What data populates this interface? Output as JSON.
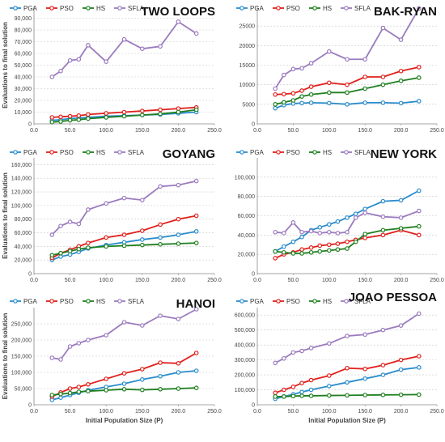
{
  "figure": {
    "legend": [
      "PGA",
      "PSO",
      "HS",
      "SFLA"
    ],
    "series_colors": {
      "PGA": "#2a8ccc",
      "PSO": "#e0201c",
      "HS": "#1f7f1f",
      "SFLA": "#9b7bbf"
    }
  },
  "chart_data": [
    {
      "type": "line",
      "title": "TWO LOOPS",
      "xlabel": "",
      "ylabel": "Evaluations to final solution",
      "xlim": [
        0,
        250
      ],
      "ylim": [
        0,
        100000
      ],
      "xticks": [
        0,
        50,
        100,
        150,
        200,
        250
      ],
      "xtick_labels": [
        "0.0",
        "50.0",
        "100.0",
        "150.0",
        "200.0",
        "250.0"
      ],
      "yticks": [
        0,
        10000,
        20000,
        30000,
        40000,
        50000,
        60000,
        70000,
        80000,
        90000
      ],
      "ytick_labels": [
        "0",
        "10,000",
        "20,000",
        "30,000",
        "40,000",
        "50,000",
        "60,000",
        "70,000",
        "80,000",
        "90,000"
      ],
      "x": [
        25,
        37,
        50,
        62,
        75,
        100,
        125,
        150,
        175,
        200,
        225
      ],
      "series": [
        {
          "name": "PGA",
          "values": [
            3000,
            3500,
            4500,
            5000,
            5500,
            6500,
            7000,
            7500,
            8000,
            9000,
            10000
          ]
        },
        {
          "name": "PSO",
          "values": [
            5500,
            6000,
            6500,
            7000,
            8000,
            9000,
            10000,
            11000,
            12000,
            13000,
            14000
          ]
        },
        {
          "name": "HS",
          "values": [
            1500,
            2000,
            3000,
            3500,
            4500,
            5500,
            6500,
            7500,
            8500,
            10000,
            12000
          ]
        },
        {
          "name": "SFLA",
          "values": [
            40000,
            45000,
            54000,
            55000,
            67000,
            53000,
            72000,
            64000,
            66000,
            87000,
            77000
          ]
        }
      ]
    },
    {
      "type": "line",
      "title": "BAK-RYAN",
      "xlabel": "",
      "ylabel": "",
      "xlim": [
        0,
        250
      ],
      "ylim": [
        0,
        30000
      ],
      "xticks": [
        0,
        50,
        100,
        150,
        200,
        250
      ],
      "xtick_labels": [
        "0.0",
        "50.0",
        "100.0",
        "150.0",
        "200.0",
        "250.0"
      ],
      "yticks": [
        0,
        5000,
        10000,
        15000,
        20000,
        25000
      ],
      "ytick_labels": [
        "0",
        "5000",
        "10000",
        "15000",
        "20000",
        "25000"
      ],
      "x": [
        25,
        37,
        50,
        62,
        75,
        100,
        125,
        150,
        175,
        200,
        225
      ],
      "series": [
        {
          "name": "PGA",
          "values": [
            4000,
            4800,
            5200,
            5300,
            5400,
            5300,
            5000,
            5400,
            5400,
            5300,
            5800
          ]
        },
        {
          "name": "PSO",
          "values": [
            7500,
            7600,
            7800,
            8500,
            9500,
            10500,
            10000,
            12000,
            12000,
            13500,
            14500
          ]
        },
        {
          "name": "HS",
          "values": [
            5000,
            5500,
            6000,
            7000,
            7500,
            8000,
            8000,
            9000,
            10000,
            11000,
            11800
          ]
        },
        {
          "name": "SFLA",
          "values": [
            9000,
            12500,
            14000,
            14200,
            15500,
            18500,
            16500,
            16500,
            24500,
            21500,
            29500
          ]
        }
      ]
    },
    {
      "type": "line",
      "title": "GOYANG",
      "xlabel": "",
      "ylabel": "Evaluations to final solution",
      "xlim": [
        0,
        250
      ],
      "ylim": [
        0,
        170000
      ],
      "xticks": [
        0,
        50,
        100,
        150,
        200,
        250
      ],
      "xtick_labels": [
        "0.0",
        "50.0",
        "100.0",
        "150.0",
        "200.0",
        "250.0"
      ],
      "yticks": [
        0,
        20000,
        40000,
        60000,
        80000,
        100000,
        120000,
        140000,
        160000
      ],
      "ytick_labels": [
        "0",
        "20,000",
        "40,000",
        "60,000",
        "80,000",
        "100,000",
        "120,000",
        "140,000",
        "160,000"
      ],
      "x": [
        25,
        37,
        50,
        62,
        75,
        100,
        125,
        150,
        175,
        200,
        225
      ],
      "series": [
        {
          "name": "PGA",
          "values": [
            20000,
            25000,
            28000,
            32000,
            37000,
            42000,
            46000,
            50000,
            53000,
            57000,
            62000
          ]
        },
        {
          "name": "PSO",
          "values": [
            23000,
            30000,
            35000,
            40000,
            45000,
            53000,
            57000,
            63000,
            72000,
            80000,
            85000
          ]
        },
        {
          "name": "HS",
          "values": [
            27000,
            30000,
            33000,
            36000,
            38000,
            40000,
            41000,
            42000,
            43000,
            44000,
            45000
          ]
        },
        {
          "name": "SFLA",
          "values": [
            57000,
            70000,
            76000,
            73000,
            94000,
            103000,
            111000,
            108000,
            128000,
            130000,
            136000
          ]
        }
      ]
    },
    {
      "type": "line",
      "title": "NEW YORK",
      "xlabel": "",
      "ylabel": "",
      "xlim": [
        0,
        250
      ],
      "ylim": [
        0,
        120000
      ],
      "xticks": [
        0,
        50,
        100,
        150,
        200,
        250
      ],
      "xtick_labels": [
        "0.0",
        "50.0",
        "100.0",
        "150.0",
        "200.0",
        "250.0"
      ],
      "yticks": [
        0,
        20000,
        40000,
        60000,
        80000,
        100000
      ],
      "ytick_labels": [
        "0",
        "20,000",
        "40,000",
        "60,000",
        "80,000",
        "100,000"
      ],
      "x": [
        25,
        37,
        50,
        62,
        75,
        87,
        100,
        112,
        125,
        137,
        150,
        175,
        200,
        225
      ],
      "series": [
        {
          "name": "PGA",
          "values": [
            23000,
            28000,
            33000,
            38000,
            45000,
            48000,
            51000,
            54000,
            58000,
            62000,
            67000,
            75000,
            76000,
            86000
          ]
        },
        {
          "name": "PSO",
          "values": [
            16000,
            20000,
            22000,
            25000,
            27000,
            29000,
            30000,
            31000,
            33000,
            35000,
            37000,
            40000,
            45000,
            40000
          ]
        },
        {
          "name": "HS",
          "values": [
            23000,
            22000,
            21000,
            21000,
            22000,
            23000,
            24000,
            25000,
            26000,
            33000,
            41000,
            45000,
            47000,
            49000
          ]
        },
        {
          "name": "SFLA",
          "values": [
            43000,
            42000,
            53000,
            43000,
            44000,
            42000,
            43000,
            42000,
            43000,
            58000,
            63000,
            59000,
            58000,
            65000
          ]
        }
      ]
    },
    {
      "type": "line",
      "title": "HANOI",
      "xlabel": "Initial  Population Size (P)",
      "ylabel": "Evaluations to final solution",
      "xlim": [
        0,
        250
      ],
      "ylim": [
        0,
        300000
      ],
      "xticks": [
        0,
        50,
        100,
        150,
        200,
        250
      ],
      "xtick_labels": [
        "0.0",
        "50.0",
        "100.0",
        "150.0",
        "200.0",
        "250.0"
      ],
      "yticks": [
        0,
        50000,
        100000,
        150000,
        200000,
        250000
      ],
      "ytick_labels": [
        "0",
        "50,000",
        "100,000",
        "150,000",
        "200,000",
        "250,000"
      ],
      "x": [
        25,
        37,
        50,
        62,
        75,
        100,
        125,
        150,
        175,
        200,
        225
      ],
      "series": [
        {
          "name": "PGA",
          "values": [
            15000,
            22000,
            30000,
            37000,
            45000,
            55000,
            65000,
            78000,
            88000,
            100000,
            105000
          ]
        },
        {
          "name": "PSO",
          "values": [
            25000,
            38000,
            50000,
            55000,
            63000,
            80000,
            97000,
            110000,
            130000,
            128000,
            160000
          ]
        },
        {
          "name": "HS",
          "values": [
            30000,
            33000,
            36000,
            40000,
            42000,
            45000,
            48000,
            46000,
            48000,
            50000,
            52000
          ]
        },
        {
          "name": "SFLA",
          "values": [
            145000,
            140000,
            180000,
            190000,
            200000,
            215000,
            255000,
            245000,
            275000,
            265000,
            295000
          ]
        }
      ]
    },
    {
      "type": "line",
      "title": "JOAO PESSOA",
      "xlabel": "Initial  Population Size (P)",
      "ylabel": "",
      "xlim": [
        0,
        250
      ],
      "ylim": [
        0,
        650000
      ],
      "xticks": [
        0,
        50,
        100,
        150,
        200,
        250
      ],
      "xtick_labels": [
        "0.0",
        "50.0",
        "100.0",
        "150.0",
        "200.0",
        "250.0"
      ],
      "yticks": [
        0,
        100000,
        200000,
        300000,
        400000,
        500000,
        600000
      ],
      "ytick_labels": [
        "0",
        "100,000",
        "200,000",
        "300,000",
        "400,000",
        "500,000",
        "600,000"
      ],
      "x": [
        25,
        37,
        50,
        62,
        75,
        100,
        125,
        150,
        175,
        200,
        225
      ],
      "series": [
        {
          "name": "PGA",
          "values": [
            40000,
            55000,
            70000,
            85000,
            100000,
            125000,
            150000,
            175000,
            200000,
            235000,
            250000
          ]
        },
        {
          "name": "PSO",
          "values": [
            80000,
            100000,
            120000,
            145000,
            165000,
            195000,
            245000,
            240000,
            265000,
            300000,
            325000
          ]
        },
        {
          "name": "HS",
          "values": [
            55000,
            55000,
            58000,
            60000,
            60000,
            62000,
            63000,
            65000,
            66000,
            67000,
            68000
          ]
        },
        {
          "name": "SFLA",
          "values": [
            280000,
            310000,
            350000,
            360000,
            380000,
            410000,
            460000,
            470000,
            500000,
            530000,
            610000
          ]
        }
      ]
    }
  ]
}
